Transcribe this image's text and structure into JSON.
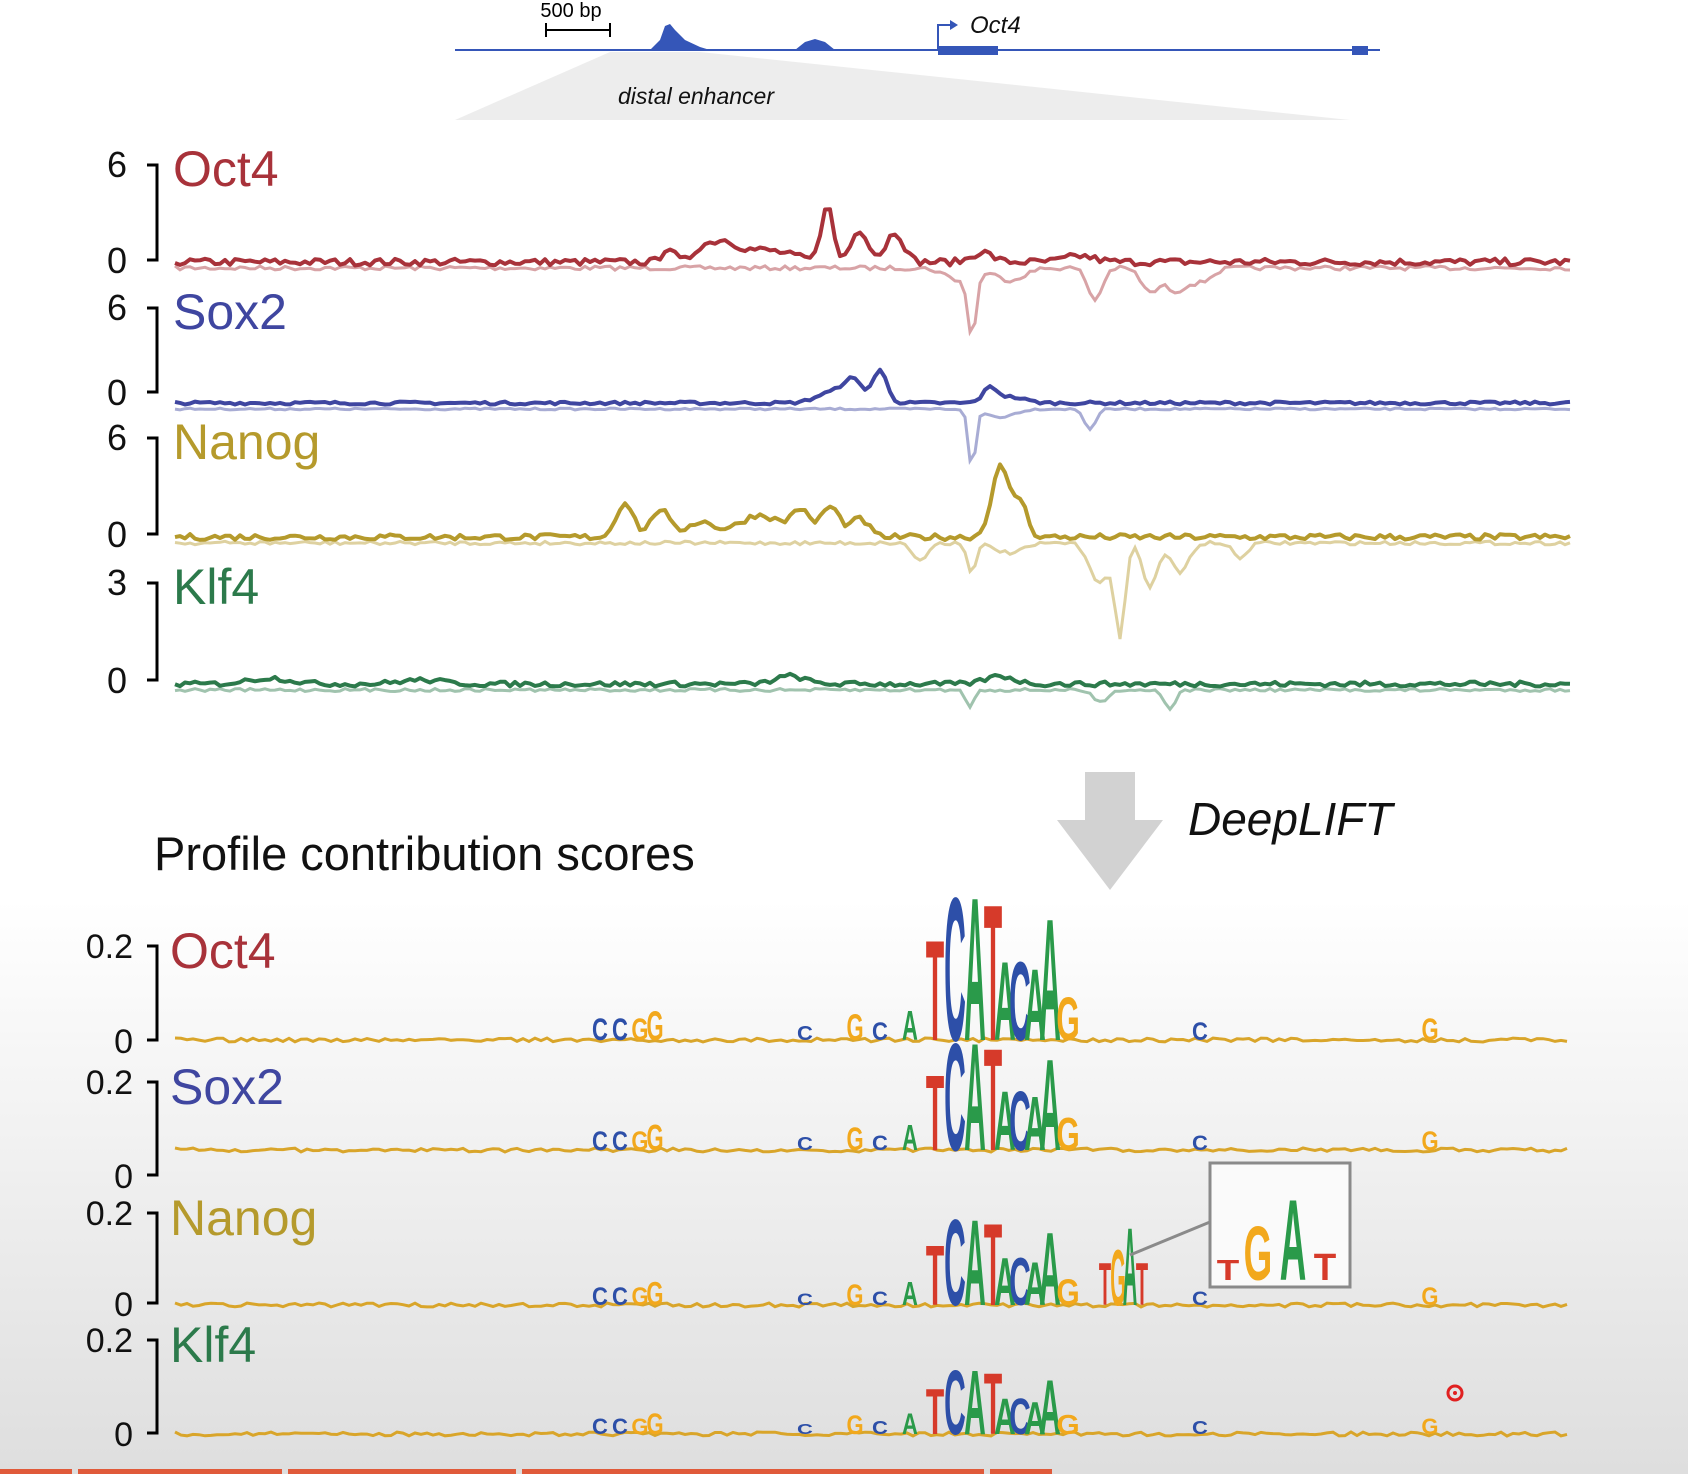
{
  "header": {
    "scale_label": "500 bp",
    "gene_label": "Oct4",
    "region_label": "distal enhancer"
  },
  "arrow_label": "DeepLIFT",
  "section_title": "Profile contribution scores",
  "colors": {
    "Oct4": "#a8323a",
    "Sox2": "#3f46a0",
    "Nanog": "#b59a2c",
    "Klf4": "#2c7a4b",
    "gene_track": "#3556b8",
    "base_A": "#2a9a4a",
    "base_C": "#2d4fa8",
    "base_G": "#f2a81c",
    "base_T": "#d63a2a"
  },
  "coverage_tracks": [
    {
      "name": "Oct4",
      "top_tick": "6",
      "bottom_tick": "0"
    },
    {
      "name": "Sox2",
      "top_tick": "6",
      "bottom_tick": "0"
    },
    {
      "name": "Nanog",
      "top_tick": "6",
      "bottom_tick": "0"
    },
    {
      "name": "Klf4",
      "top_tick": "3",
      "bottom_tick": "0"
    }
  ],
  "contribution_tracks": [
    {
      "name": "Oct4",
      "top_tick": "0.2",
      "bottom_tick": "0"
    },
    {
      "name": "Sox2",
      "top_tick": "0.2",
      "bottom_tick": "0"
    },
    {
      "name": "Nanog",
      "top_tick": "0.2",
      "bottom_tick": "0"
    },
    {
      "name": "Klf4",
      "top_tick": "0.2",
      "bottom_tick": "0"
    }
  ],
  "inset_motif": [
    "T",
    "G",
    "A",
    "T"
  ]
}
